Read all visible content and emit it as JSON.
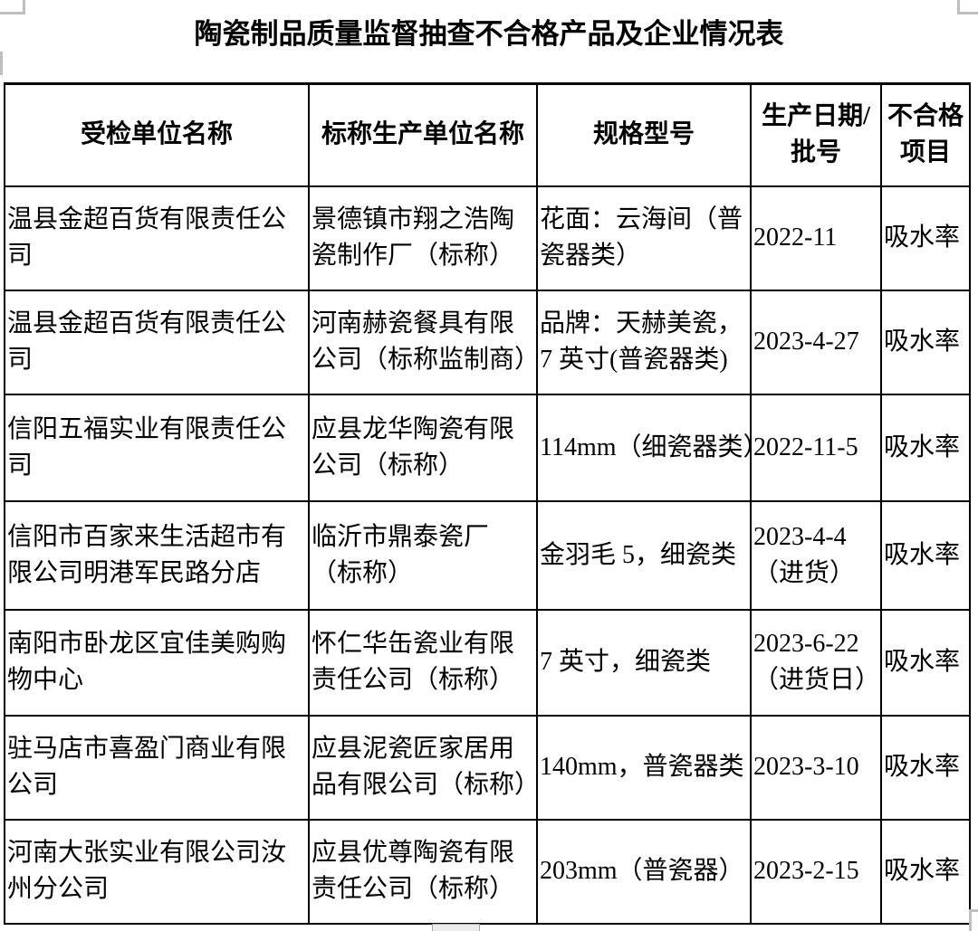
{
  "page": {
    "title": "陶瓷制品质量监督抽查不合格产品及企业情况表"
  },
  "table": {
    "columns": [
      "受检单位名称",
      "标称生产单位名称",
      "规格型号",
      "生产日期/\n批号",
      "不合格\n项目"
    ],
    "rows": [
      [
        "温县金超百货有限责任公\n司",
        "景德镇市翔之浩陶\n瓷制作厂（标称）",
        "花面：云海间（普\n瓷器类）",
        "2022-11",
        "吸水率"
      ],
      [
        "温县金超百货有限责任公\n司",
        "河南赫瓷餐具有限\n公司（标称监制商）",
        "品牌：天赫美瓷，\n7 英寸(普瓷器类)",
        "2023-4-27",
        "吸水率"
      ],
      [
        "信阳五福实业有限责任公\n司",
        "应县龙华陶瓷有限\n公司（标称）",
        "114mm（细瓷器类）",
        "2022-11-5",
        "吸水率"
      ],
      [
        "信阳市百家来生活超市有\n限公司明港军民路分店",
        "临沂市鼎泰瓷厂\n（标称）",
        "金羽毛 5，细瓷类",
        "2023-4-4\n（进货）",
        "吸水率"
      ],
      [
        "南阳市卧龙区宜佳美购购\n物中心",
        "怀仁华缶瓷业有限\n责任公司（标称）",
        "7 英寸，细瓷类",
        "2023-6-22\n（进货日）",
        "吸水率"
      ],
      [
        "驻马店市喜盈门商业有限\n公司",
        "应县泥瓷匠家居用\n品有限公司（标称）",
        "140mm，普瓷器类",
        "2023-3-10",
        "吸水率"
      ],
      [
        "河南大张实业有限公司汝\n州分公司",
        "应县优尊陶瓷有限\n责任公司（标称）",
        "203mm（普瓷器）",
        "2023-2-15",
        "吸水率"
      ]
    ],
    "column_keys": [
      "inspected-unit",
      "producer-unit",
      "spec-model",
      "production-date-batch",
      "defect-item"
    ]
  },
  "colors": {
    "border": "#000000",
    "text": "#000000",
    "crop_mark": "#bfbfbf",
    "scrollbar_thumb": "#ececec"
  }
}
